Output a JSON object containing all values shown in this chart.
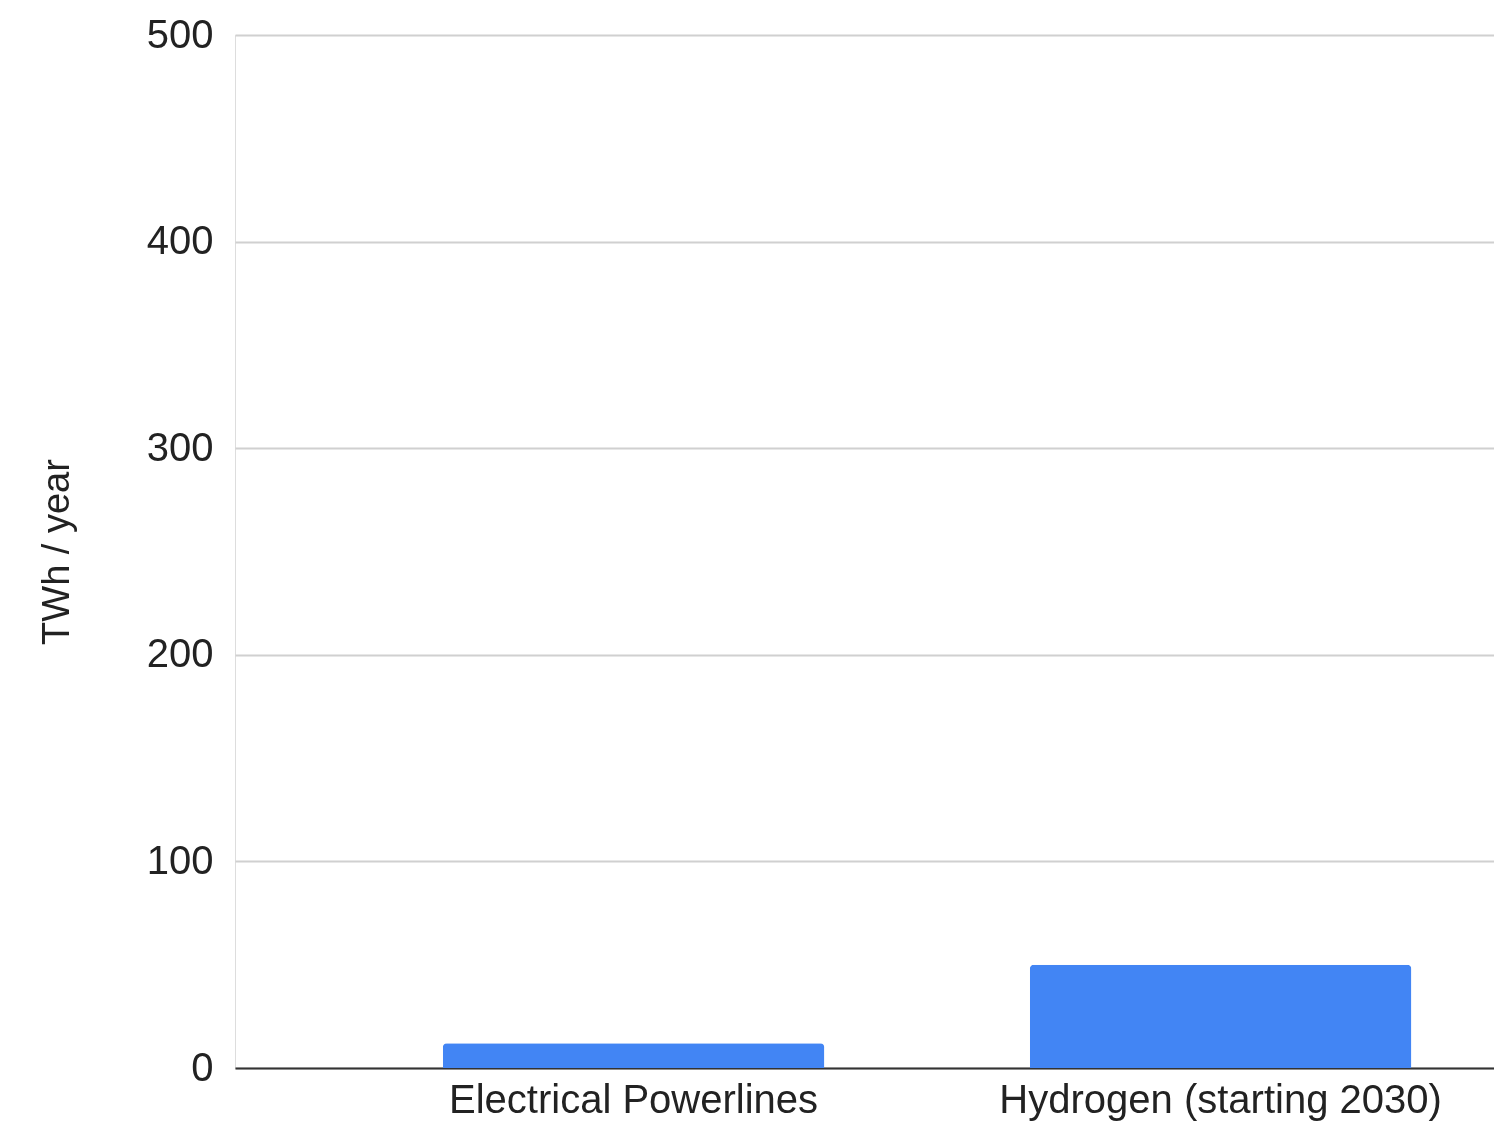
{
  "chart_data": {
    "type": "bar",
    "ylabel": "TWh / year",
    "categories": [
      "Electrical Powerlines",
      "Hydrogen (starting 2030)"
    ],
    "values": [
      12,
      50
    ],
    "color": "#4285f4",
    "ylim": [
      0,
      500
    ],
    "yticks": [
      0,
      100,
      200,
      300,
      400,
      500
    ],
    "grid": "y"
  }
}
